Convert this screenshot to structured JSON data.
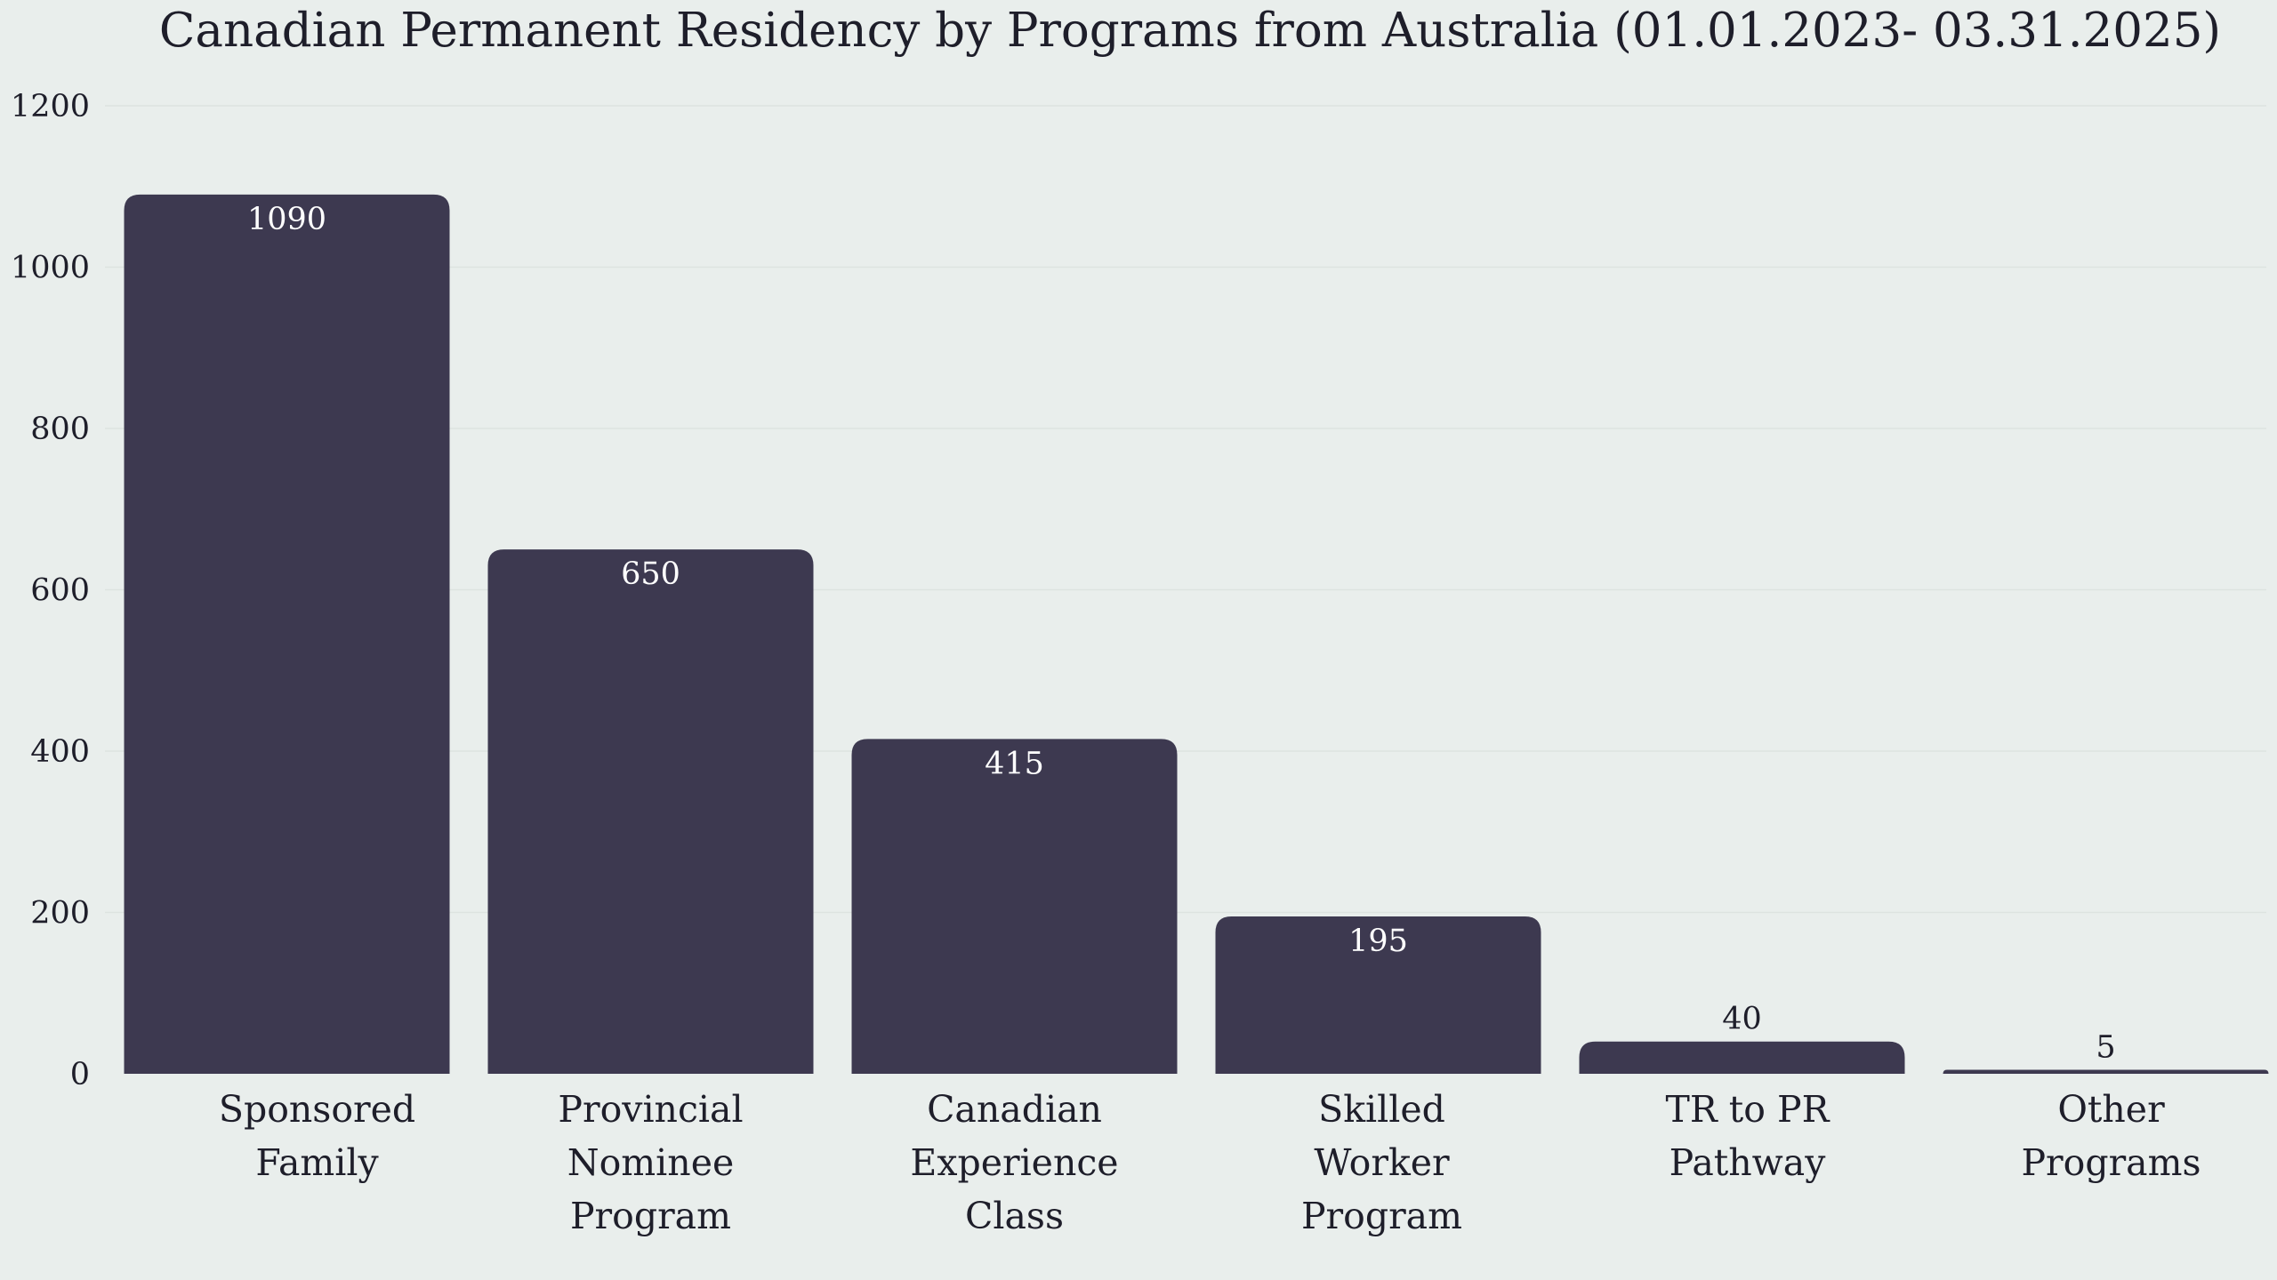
{
  "colors": {
    "background": "#e9eeec",
    "bar": "#3d3950",
    "text": "#1e1e2a",
    "label_inside": "#ffffff",
    "grid": "#dde3e0"
  },
  "chart_data": {
    "type": "bar",
    "title": "Canadian Permanent Residency by Programs from Australia (01.01.2023- 03.31.2025)",
    "xlabel": "",
    "ylabel": "",
    "ylim": [
      0,
      1200
    ],
    "yticks": [
      0,
      200,
      400,
      600,
      800,
      1000,
      1200
    ],
    "grid": true,
    "categories": [
      [
        "Sponsored",
        "Family"
      ],
      [
        "Provincial",
        "Nominee",
        "Program"
      ],
      [
        "Canadian",
        "Experience",
        "Class"
      ],
      [
        "Skilled",
        "Worker",
        "Program"
      ],
      [
        "TR to PR",
        "Pathway"
      ],
      [
        "Other",
        "Programs"
      ]
    ],
    "values": [
      1090,
      650,
      415,
      195,
      40,
      5
    ],
    "data_labels": [
      "1090",
      "650",
      "415",
      "195",
      "40",
      "5"
    ]
  }
}
